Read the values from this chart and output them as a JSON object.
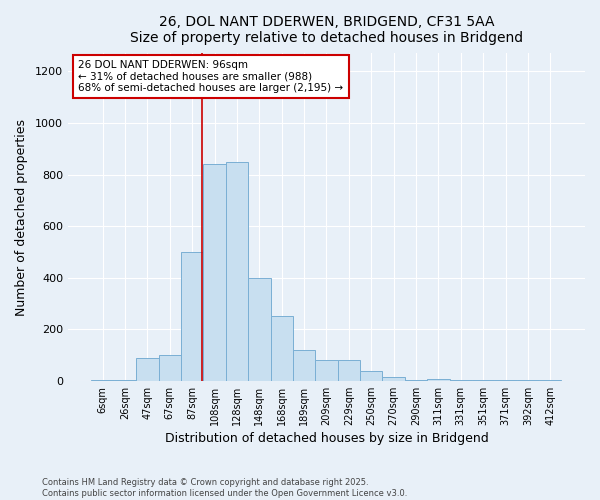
{
  "title_line1": "26, DOL NANT DDERWEN, BRIDGEND, CF31 5AA",
  "title_line2": "Size of property relative to detached houses in Bridgend",
  "xlabel": "Distribution of detached houses by size in Bridgend",
  "ylabel": "Number of detached properties",
  "bar_labels": [
    "6sqm",
    "26sqm",
    "47sqm",
    "67sqm",
    "87sqm",
    "108sqm",
    "128sqm",
    "148sqm",
    "168sqm",
    "189sqm",
    "209sqm",
    "229sqm",
    "250sqm",
    "270sqm",
    "290sqm",
    "311sqm",
    "331sqm",
    "351sqm",
    "371sqm",
    "392sqm",
    "412sqm"
  ],
  "bar_values": [
    2,
    3,
    90,
    100,
    500,
    840,
    850,
    400,
    250,
    120,
    80,
    80,
    40,
    15,
    5,
    8,
    2,
    2,
    3,
    2,
    2
  ],
  "bar_color": "#c8dff0",
  "bar_edge_color": "#7aafd4",
  "background_color": "#e8f0f8",
  "vline_color": "#cc0000",
  "annotation_title": "26 DOL NANT DDERWEN: 96sqm",
  "annotation_line2": "← 31% of detached houses are smaller (988)",
  "annotation_line3": "68% of semi-detached houses are larger (2,195) →",
  "annotation_box_color": "#ffffff",
  "annotation_box_edge": "#cc0000",
  "ylim": [
    0,
    1270
  ],
  "yticks": [
    0,
    200,
    400,
    600,
    800,
    1000,
    1200
  ],
  "footer_line1": "Contains HM Land Registry data © Crown copyright and database right 2025.",
  "footer_line2": "Contains public sector information licensed under the Open Government Licence v3.0."
}
